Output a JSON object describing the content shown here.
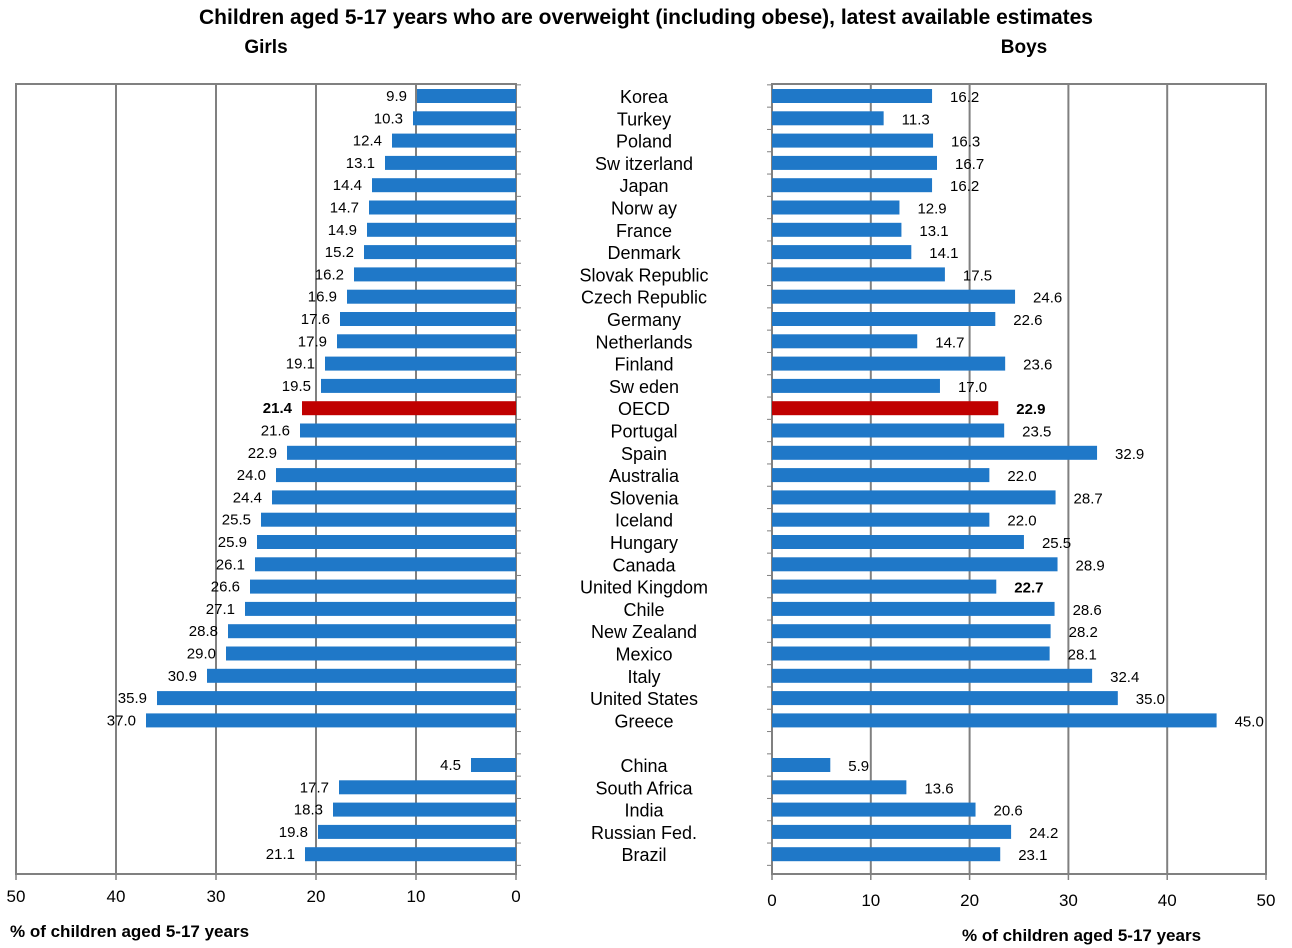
{
  "title": "Children aged 5-17 years who are overweight (including obese), latest available estimates",
  "colors": {
    "bar": "#1f78c8",
    "highlight": "#c00000",
    "grid": "#808080"
  },
  "chart_data": [
    {
      "type": "bar",
      "orientation": "horizontal-reversed",
      "panel_title": "Girls",
      "xlabel": "% of children aged 5-17 years",
      "xlim": [
        0,
        50
      ],
      "xticks": [
        50,
        40,
        30,
        20,
        10,
        0
      ],
      "grid": true,
      "highlight": "OECD",
      "categories": [
        "Korea",
        "Turkey",
        "Poland",
        "Sw itzerland",
        "Japan",
        "Norw ay",
        "France",
        "Denmark",
        "Slovak Republic",
        "Czech Republic",
        "Germany",
        "Netherlands",
        "Finland",
        "Sw eden",
        "OECD",
        "Portugal",
        "Spain",
        "Australia",
        "Slovenia",
        "Iceland",
        "Hungary",
        "Canada",
        "United Kingdom",
        "Chile",
        "New Zealand",
        "Mexico",
        "Italy",
        "United States",
        "Greece",
        "China",
        "South Africa",
        "India",
        "Russian Fed.",
        "Brazil"
      ],
      "values": [
        9.9,
        10.3,
        12.4,
        13.1,
        14.4,
        14.7,
        14.9,
        15.2,
        16.2,
        16.9,
        17.6,
        17.9,
        19.1,
        19.5,
        21.4,
        21.6,
        22.9,
        24.0,
        24.4,
        25.5,
        25.9,
        26.1,
        26.6,
        27.1,
        28.8,
        29.0,
        30.9,
        35.9,
        37.0,
        4.5,
        17.7,
        18.3,
        19.8,
        21.1
      ],
      "labels": [
        "9.9",
        "10.3",
        "12.4",
        "13.1",
        "14.4",
        "14.7",
        "14.9",
        "15.2",
        "16.2",
        "16.9",
        "17.6",
        "17.9",
        "19.1",
        "19.5",
        "21.4",
        "21.6",
        "22.9",
        "24.0",
        "24.4",
        "25.5",
        "25.9",
        "26.1",
        "26.6",
        "27.1",
        "28.8",
        "29.0",
        "30.9",
        "35.9",
        "37.0",
        "4.5",
        "17.7",
        "18.3",
        "19.8",
        "21.1"
      ]
    },
    {
      "type": "bar",
      "orientation": "horizontal",
      "panel_title": "Boys",
      "xlabel": "% of children aged 5-17 years",
      "xlim": [
        0,
        50
      ],
      "xticks": [
        0,
        10,
        20,
        30,
        40,
        50
      ],
      "grid": true,
      "highlight": "OECD",
      "categories": [
        "Korea",
        "Turkey",
        "Poland",
        "Sw itzerland",
        "Japan",
        "Norw ay",
        "France",
        "Denmark",
        "Slovak Republic",
        "Czech Republic",
        "Germany",
        "Netherlands",
        "Finland",
        "Sw eden",
        "OECD",
        "Portugal",
        "Spain",
        "Australia",
        "Slovenia",
        "Iceland",
        "Hungary",
        "Canada",
        "United Kingdom",
        "Chile",
        "New Zealand",
        "Mexico",
        "Italy",
        "United States",
        "Greece",
        "China",
        "South Africa",
        "India",
        "Russian Fed.",
        "Brazil"
      ],
      "values": [
        16.2,
        11.3,
        16.3,
        16.7,
        16.2,
        12.9,
        13.1,
        14.1,
        17.5,
        24.6,
        22.6,
        14.7,
        23.6,
        17.0,
        22.9,
        23.5,
        32.9,
        22.0,
        28.7,
        22.0,
        25.5,
        28.9,
        22.7,
        28.6,
        28.2,
        28.1,
        32.4,
        35.0,
        45.0,
        5.9,
        13.6,
        20.6,
        24.2,
        23.1
      ],
      "labels": [
        "16.2",
        "11.3",
        "16.3",
        "16.7",
        "16.2",
        "12.9",
        "13.1",
        "14.1",
        "17.5",
        "24.6",
        "22.6",
        "14.7",
        "23.6",
        "17.0",
        "22.9",
        "23.5",
        "32.9",
        "22.0",
        "28.7",
        "22.0",
        "25.5",
        "28.9",
        "22.7",
        "28.6",
        "28.2",
        "28.1",
        "32.4",
        "35.0",
        "45.0",
        "5.9",
        "13.6",
        "20.6",
        "24.2",
        "23.1"
      ],
      "bold_labels": [
        "OECD",
        "United Kingdom"
      ]
    }
  ]
}
